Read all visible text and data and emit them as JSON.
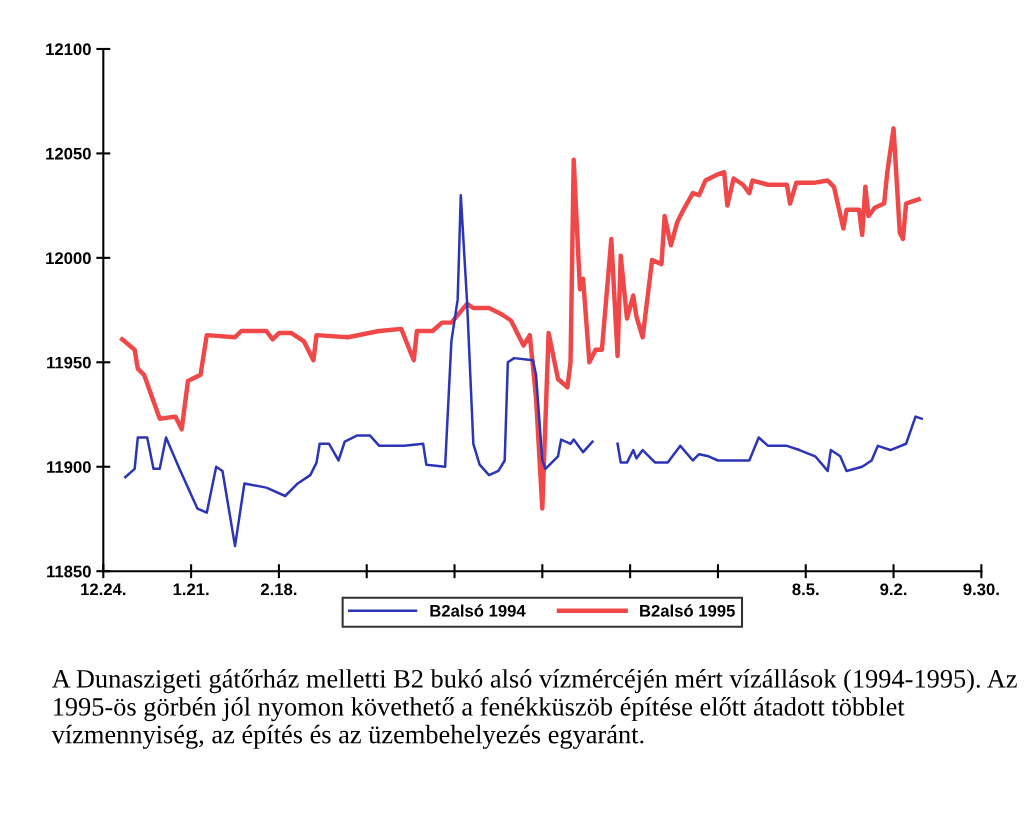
{
  "chart_data": {
    "type": "line",
    "xlim": [
      "1994-12-24",
      "1995-09-30"
    ],
    "ylim": [
      11850,
      12100
    ],
    "xticks": [
      {
        "value": "1994-12-24",
        "label": "12.24."
      },
      {
        "value": "1995-01-21",
        "label": "1.21."
      },
      {
        "value": "1995-02-18",
        "label": "2.18."
      },
      {
        "value": "1995-03-18",
        "label": null
      },
      {
        "value": "1995-04-15",
        "label": null
      },
      {
        "value": "1995-05-13",
        "label": null
      },
      {
        "value": "1995-06-10",
        "label": null
      },
      {
        "value": "1995-07-08",
        "label": null
      },
      {
        "value": "1995-08-05",
        "label": "8.5."
      },
      {
        "value": "1995-09-02",
        "label": "9.2."
      },
      {
        "value": "1995-09-30",
        "label": "9.30."
      }
    ],
    "yticks": [
      11850,
      11900,
      11950,
      12000,
      12050,
      12100
    ],
    "grid": false,
    "legend": "bottom",
    "marker": "none",
    "line_style": "solid",
    "annotations": [
      "A Dunaszigeti gátőrház melletti B2 bukó alsó vízmércéjén mért vízállások (1994-1995). Az 1995-ös görbén jól nyomon követhető a fenékküszöb építése előtt átadott többlet vízmennyiség, az építés és az üzembehelyezés egyaránt."
    ],
    "series": [
      {
        "name": "B2alsó 1994",
        "color": "#2b35b5",
        "x": [
          "1994-12-31",
          "1995-01-03",
          "1995-01-04",
          "1995-01-07",
          "1995-01-09",
          "1995-01-11",
          "1995-01-13",
          "1995-01-17",
          "1995-01-23",
          "1995-01-26",
          "1995-01-29",
          "1995-01-31",
          "1995-02-04",
          "1995-02-07",
          "1995-02-14",
          "1995-02-20",
          "1995-02-24",
          "1995-02-28",
          "1995-03-02",
          "1995-03-03",
          "1995-03-06",
          "1995-03-09",
          "1995-03-11",
          "1995-03-15",
          "1995-03-19",
          "1995-03-22",
          "1995-03-30",
          "1995-04-05",
          "1995-04-06",
          "1995-04-12",
          "1995-04-14",
          "1995-04-16",
          "1995-04-17",
          "1995-04-19",
          "1995-04-21",
          "1995-04-23",
          "1995-04-26",
          "1995-04-29",
          "1995-05-01",
          "1995-05-02",
          "1995-05-04",
          "1995-05-10",
          "1995-05-11",
          "1995-05-13",
          "1995-05-14",
          "1995-05-18",
          "1995-05-19",
          "1995-05-22",
          "1995-05-23",
          "1995-05-26",
          "1995-05-29",
          "1995-06-02",
          "1995-06-06",
          "1995-06-07",
          "1995-06-09",
          "1995-06-11",
          "1995-06-12",
          "1995-06-14",
          "1995-06-18",
          "1995-06-22",
          "1995-06-26",
          "1995-06-30",
          "1995-07-02",
          "1995-07-05",
          "1995-07-08",
          "1995-07-18",
          "1995-07-21",
          "1995-07-24",
          "1995-07-30",
          "1995-08-03",
          "1995-08-08",
          "1995-08-12",
          "1995-08-13",
          "1995-08-16",
          "1995-08-18",
          "1995-08-23",
          "1995-08-26",
          "1995-08-28",
          "1995-09-01",
          "1995-09-06",
          "1995-09-09",
          "1995-09-11"
        ],
        "values": [
          11895,
          11899,
          11914,
          11914,
          11899,
          11899,
          11914,
          11900,
          11880,
          11878,
          11900,
          11898,
          11862,
          11892,
          11890,
          11886,
          11892,
          11896,
          11902,
          11911,
          11911,
          11903,
          11912,
          11915,
          11915,
          11910,
          11910,
          11911,
          11901,
          11900,
          11960,
          11980,
          12030,
          11979,
          11911,
          11901,
          11896,
          11898,
          11903,
          11950,
          11952,
          11951,
          11944,
          11903,
          11899,
          11905,
          11913,
          11911,
          11913,
          11907,
          11912,
          null,
          11911,
          11902,
          11902,
          11908,
          11904,
          11908,
          11902,
          11902,
          11910,
          11903,
          11906,
          11905,
          11903,
          11903,
          11914,
          11910,
          11910,
          11908,
          11905,
          11898,
          11908,
          11905,
          11898,
          11900,
          11903,
          11910,
          11908,
          11911,
          11924,
          11923
        ]
      },
      {
        "name": "B2alsó 1995",
        "color": "#f04848",
        "x": [
          "1994-12-30",
          "1995-01-03",
          "1995-01-04",
          "1995-01-06",
          "1995-01-11",
          "1995-01-16",
          "1995-01-18",
          "1995-01-20",
          "1995-01-24",
          "1995-01-26",
          "1995-02-04",
          "1995-02-06",
          "1995-02-14",
          "1995-02-16",
          "1995-02-18",
          "1995-02-22",
          "1995-02-26",
          "1995-03-01",
          "1995-03-02",
          "1995-03-12",
          "1995-03-22",
          "1995-03-29",
          "1995-04-02",
          "1995-04-03",
          "1995-04-08",
          "1995-04-11",
          "1995-04-14",
          "1995-04-19",
          "1995-04-21",
          "1995-04-26",
          "1995-04-30",
          "1995-05-03",
          "1995-05-07",
          "1995-05-09",
          "1995-05-11",
          "1995-05-13",
          "1995-05-15",
          "1995-05-18",
          "1995-05-21",
          "1995-05-22",
          "1995-05-23",
          "1995-05-25",
          "1995-05-26",
          "1995-05-28",
          "1995-05-30",
          "1995-06-01",
          "1995-06-04",
          "1995-06-06",
          "1995-06-07",
          "1995-06-09",
          "1995-06-11",
          "1995-06-12",
          "1995-06-14",
          "1995-06-17",
          "1995-06-20",
          "1995-06-21",
          "1995-06-23",
          "1995-06-25",
          "1995-06-27",
          "1995-06-30",
          "1995-07-02",
          "1995-07-04",
          "1995-07-08",
          "1995-07-10",
          "1995-07-11",
          "1995-07-13",
          "1995-07-16",
          "1995-07-18",
          "1995-07-19",
          "1995-07-24",
          "1995-07-30",
          "1995-07-31",
          "1995-08-02",
          "1995-08-08",
          "1995-08-12",
          "1995-08-14",
          "1995-08-17",
          "1995-08-18",
          "1995-08-22",
          "1995-08-23",
          "1995-08-24",
          "1995-08-25",
          "1995-08-27",
          "1995-08-30",
          "1995-08-31",
          "1995-09-02",
          "1995-09-04",
          "1995-09-05",
          "1995-09-06",
          "1995-09-08",
          "1995-09-10"
        ],
        "values": [
          11961,
          11956,
          11947,
          11944,
          11923,
          11924,
          11918,
          11941,
          11944,
          11963,
          11962,
          11965,
          11965,
          11961,
          11964,
          11964,
          11960,
          11951,
          11963,
          11962,
          11965,
          11966,
          11951,
          11965,
          11965,
          11969,
          11969,
          11978,
          11976,
          11976,
          11973,
          11970,
          11958,
          11963,
          11933,
          11880,
          11964,
          11942,
          11938,
          11950,
          12047,
          11985,
          11990,
          11950,
          11956,
          11956,
          12009,
          11953,
          12001,
          11971,
          11982,
          11972,
          11962,
          11999,
          11997,
          12020,
          12006,
          12017,
          12023,
          12031,
          12030,
          12037,
          12040,
          12041,
          12025,
          12038,
          12035,
          12031,
          12037,
          12035,
          12035,
          12026,
          12036,
          12036,
          12037,
          12034,
          12014,
          12023,
          12023,
          12011,
          12034,
          12020,
          12024,
          12026,
          12041,
          12062,
          12012,
          12009,
          12026,
          12027,
          12028
        ]
      }
    ]
  }
}
